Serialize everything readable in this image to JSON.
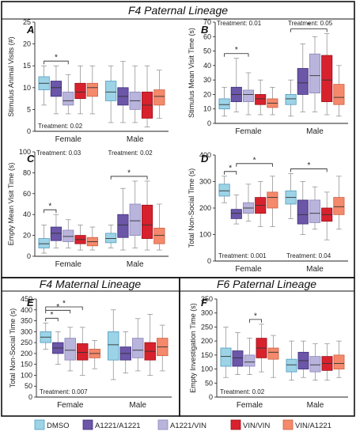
{
  "sections": [
    {
      "id": "f4-paternal",
      "title": "F4 Paternal Lineage"
    },
    {
      "id": "f4-maternal",
      "title": "F4 Maternal Lineage"
    },
    {
      "id": "f6-paternal",
      "title": "F6 Paternal Lineage"
    }
  ],
  "legend": [
    {
      "label": "DMSO",
      "color": "#9dd3e6"
    },
    {
      "label": "A1221/A1221",
      "color": "#6b56a8"
    },
    {
      "label": "A1221/VIN",
      "color": "#b8b4dc"
    },
    {
      "label": "VIN/VIN",
      "color": "#d7222e"
    },
    {
      "label": "VIN/A1221",
      "color": "#f4896b"
    }
  ],
  "chart_data": [
    {
      "panel": "A",
      "type": "box",
      "ylabel": "Stimulus Animal Visits (#)",
      "ylim": [
        0,
        25
      ],
      "yticks": [
        0,
        5,
        10,
        15,
        20,
        25
      ],
      "groups": [
        "Female",
        "Male"
      ],
      "series_names": [
        "DMSO",
        "A1221/A1221",
        "A1221/VIN",
        "VIN/VIN",
        "VIN/A1221"
      ],
      "boxes": [
        [
          [
            6,
            9.5,
            11,
            12.5,
            15
          ],
          [
            4,
            8,
            10,
            11.5,
            15
          ],
          [
            4,
            6,
            7,
            9,
            13
          ],
          [
            4,
            7.5,
            9,
            11,
            15
          ],
          [
            4,
            8,
            10,
            11,
            15
          ]
        ],
        [
          [
            2,
            7,
            9,
            11.5,
            15
          ],
          [
            2,
            6,
            8,
            10,
            16
          ],
          [
            2,
            5,
            7,
            9,
            15
          ],
          [
            1,
            3,
            6,
            9,
            15
          ],
          [
            3,
            6,
            8,
            9.5,
            14
          ]
        ]
      ],
      "significance": [
        {
          "group": "Female",
          "from": "DMSO",
          "to": "A1221/VIN",
          "label": "*"
        }
      ],
      "annotations": [
        {
          "text": "Treatment: 0.02",
          "position": "bottom-left"
        }
      ]
    },
    {
      "panel": "B",
      "type": "box",
      "ylabel": "Stimulus Mean Visit Time (s)",
      "ylim": [
        0,
        70
      ],
      "yticks": [
        0,
        10,
        20,
        30,
        40,
        50,
        60,
        70
      ],
      "groups": [
        "Female",
        "Male"
      ],
      "series_names": [
        "DMSO",
        "A1221/A1221",
        "A1221/VIN",
        "VIN/VIN",
        "VIN/A1221"
      ],
      "boxes": [
        [
          [
            5,
            10,
            13,
            17,
            25
          ],
          [
            8,
            15,
            20,
            25,
            45
          ],
          [
            6,
            15,
            20,
            23,
            35
          ],
          [
            6,
            13,
            17,
            20,
            30
          ],
          [
            6,
            11,
            14,
            17,
            25
          ]
        ],
        [
          [
            5,
            13,
            17,
            20,
            30
          ],
          [
            8,
            20,
            28,
            38,
            55
          ],
          [
            8,
            21,
            33,
            48,
            60
          ],
          [
            6,
            15,
            30,
            47,
            62
          ],
          [
            5,
            13,
            18,
            27,
            40
          ]
        ]
      ],
      "significance": [
        {
          "group": "Female",
          "from": "DMSO",
          "to": "A1221/VIN",
          "label": "*"
        },
        {
          "group": "Male",
          "from": "DMSO",
          "to": "VIN/VIN",
          "label": "*"
        }
      ],
      "annotations": [
        {
          "text": "Treatment: 0.01",
          "position": "top-left"
        },
        {
          "text": "Treatment: 0.05",
          "position": "top-right"
        }
      ]
    },
    {
      "panel": "C",
      "type": "box",
      "ylabel": "Empty Mean Visit Time (s)",
      "ylim": [
        0,
        100
      ],
      "yticks": [
        0,
        20,
        40,
        60,
        80,
        100
      ],
      "groups": [
        "Female",
        "Male"
      ],
      "series_names": [
        "DMSO",
        "A1221/A1221",
        "A1221/VIN",
        "VIN/VIN",
        "VIN/A1221"
      ],
      "boxes": [
        [
          [
            3,
            8,
            12,
            17,
            30
          ],
          [
            8,
            15,
            22,
            28,
            40
          ],
          [
            8,
            14,
            19,
            25,
            35
          ],
          [
            6,
            12,
            16,
            20,
            30
          ],
          [
            6,
            10,
            14,
            18,
            28
          ]
        ],
        [
          [
            8,
            13,
            17,
            22,
            30
          ],
          [
            6,
            18,
            30,
            40,
            65
          ],
          [
            8,
            20,
            34,
            50,
            72
          ],
          [
            6,
            17,
            30,
            49,
            72
          ],
          [
            6,
            12,
            20,
            27,
            50
          ]
        ]
      ],
      "significance": [
        {
          "group": "Female",
          "from": "DMSO",
          "to": "A1221/A1221",
          "label": "*"
        },
        {
          "group": "Male",
          "from": "DMSO",
          "to": "VIN/VIN",
          "label": "*"
        }
      ],
      "annotations": [
        {
          "text": "Treatment: 0.03",
          "position": "top-left"
        },
        {
          "text": "Treatment: 0.02",
          "position": "top-right"
        }
      ]
    },
    {
      "panel": "D",
      "type": "box",
      "ylabel": "Total Non-Social Time (s)",
      "ylim": [
        0,
        400
      ],
      "yticks": [
        0,
        100,
        200,
        300,
        400
      ],
      "groups": [
        "Female",
        "Male"
      ],
      "series_names": [
        "DMSO",
        "A1221/A1221",
        "A1221/VIN",
        "VIN/VIN",
        "VIN/A1221"
      ],
      "boxes": [
        [
          [
            220,
            245,
            265,
            290,
            320
          ],
          [
            140,
            160,
            180,
            195,
            250
          ],
          [
            150,
            180,
            200,
            220,
            290
          ],
          [
            130,
            180,
            210,
            240,
            300
          ],
          [
            130,
            200,
            240,
            260,
            320
          ]
        ],
        [
          [
            160,
            215,
            240,
            265,
            330
          ],
          [
            100,
            140,
            175,
            230,
            300
          ],
          [
            120,
            145,
            180,
            230,
            280
          ],
          [
            80,
            150,
            175,
            200,
            260
          ],
          [
            120,
            175,
            205,
            240,
            320
          ]
        ]
      ],
      "significance": [
        {
          "group": "Female",
          "from": "DMSO",
          "to": "A1221/A1221",
          "label": "*"
        },
        {
          "group": "Female",
          "from": "A1221/A1221",
          "to": "VIN/A1221",
          "label": "*"
        },
        {
          "group": "Male",
          "from": "DMSO",
          "to": "VIN/VIN",
          "label": "*"
        }
      ],
      "annotations": [
        {
          "text": "Treatment: 0.001",
          "position": "bottom-left"
        },
        {
          "text": "Treatment: 0.04",
          "position": "bottom-right"
        }
      ]
    },
    {
      "panel": "E",
      "type": "box",
      "ylabel": "Total Non-Social Time (s)",
      "ylim": [
        0,
        450
      ],
      "yticks": [
        0,
        50,
        100,
        150,
        200,
        250,
        300,
        350,
        400,
        450
      ],
      "groups": [
        "Female",
        "Male"
      ],
      "series_names": [
        "DMSO",
        "A1221/A1221",
        "A1221/VIN",
        "VIN/VIN",
        "VIN/A1221"
      ],
      "boxes": [
        [
          [
            220,
            250,
            275,
            300,
            340
          ],
          [
            150,
            200,
            225,
            250,
            300
          ],
          [
            120,
            170,
            215,
            270,
            320
          ],
          [
            100,
            170,
            205,
            245,
            320
          ],
          [
            130,
            180,
            200,
            220,
            260
          ]
        ],
        [
          [
            80,
            170,
            240,
            300,
            400
          ],
          [
            110,
            170,
            200,
            230,
            300
          ],
          [
            120,
            180,
            215,
            270,
            360
          ],
          [
            100,
            170,
            210,
            250,
            380
          ],
          [
            120,
            190,
            230,
            270,
            330
          ]
        ]
      ],
      "significance": [
        {
          "group": "Female",
          "from": "DMSO",
          "to": "A1221/A1221",
          "label": "*"
        },
        {
          "group": "Female",
          "from": "DMSO",
          "to": "A1221/VIN",
          "label": "*"
        },
        {
          "group": "Female",
          "from": "DMSO",
          "to": "VIN/VIN",
          "label": "*"
        }
      ],
      "annotations": [
        {
          "text": "Treatment: 0.007",
          "position": "bottom-left"
        }
      ]
    },
    {
      "panel": "F",
      "type": "box",
      "ylabel": "Empty Investigation Time (s)",
      "ylim": [
        0,
        350
      ],
      "yticks": [
        0,
        50,
        100,
        150,
        200,
        250,
        300,
        350
      ],
      "groups": [
        "Female",
        "Male"
      ],
      "series_names": [
        "DMSO",
        "A1221/A1221",
        "A1221/VIN",
        "VIN/VIN",
        "VIN/A1221"
      ],
      "boxes": [
        [
          [
            70,
            110,
            145,
            175,
            250
          ],
          [
            80,
            110,
            140,
            165,
            230
          ],
          [
            80,
            110,
            125,
            150,
            210
          ],
          [
            90,
            140,
            175,
            210,
            260
          ],
          [
            70,
            135,
            160,
            175,
            220
          ]
        ],
        [
          [
            60,
            90,
            115,
            135,
            200
          ],
          [
            70,
            100,
            130,
            160,
            200
          ],
          [
            60,
            90,
            115,
            145,
            190
          ],
          [
            60,
            95,
            120,
            145,
            190
          ],
          [
            70,
            100,
            120,
            150,
            200
          ]
        ]
      ],
      "significance": [
        {
          "group": "Female",
          "from": "A1221/VIN",
          "to": "VIN/VIN",
          "label": "*"
        }
      ],
      "annotations": [
        {
          "text": "Treatment: 0.02",
          "position": "bottom-left"
        }
      ]
    }
  ]
}
